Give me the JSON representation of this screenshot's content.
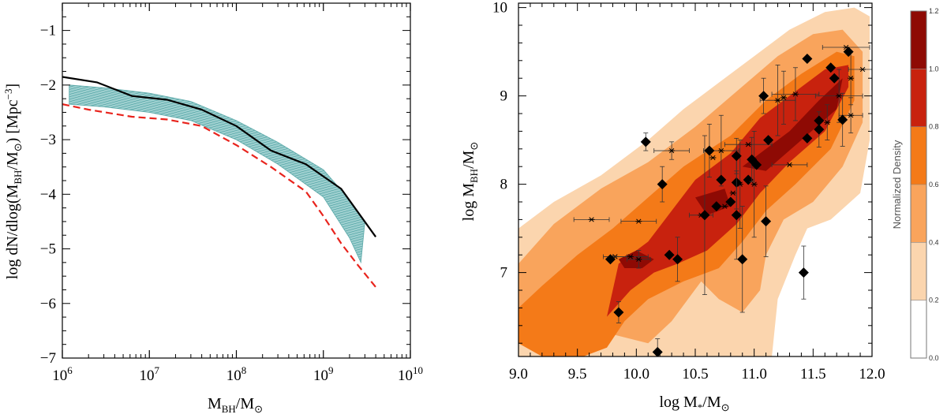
{
  "chart_data": [
    {
      "type": "line",
      "xscale": "log",
      "xlim": [
        1000000,
        10000000000
      ],
      "ylim": [
        -7,
        -0.5
      ],
      "x_ticks": [
        {
          "value": 1000000,
          "base": "10",
          "exp": "6"
        },
        {
          "value": 10000000,
          "base": "10",
          "exp": "7"
        },
        {
          "value": 100000000,
          "base": "10",
          "exp": "8"
        },
        {
          "value": 1000000000,
          "base": "10",
          "exp": "9"
        },
        {
          "value": 10000000000,
          "base": "10",
          "exp": "10"
        }
      ],
      "y_ticks": [
        -7,
        -6,
        -5,
        -4,
        -3,
        -2,
        -1
      ],
      "y_tick_labels": [
        "−7",
        "−6",
        "−5",
        "−4",
        "−3",
        "−2",
        "−1"
      ],
      "xlabel": {
        "main": "M",
        "sub1": "BH",
        "mid": "/M",
        "sub2": "⊙"
      },
      "ylabel": {
        "pre": "log dN/dlog(M",
        "sub1": "BH",
        "mid": "/M",
        "sub2": "⊙",
        "post": ") [Mpc",
        "sup": "−3",
        "end": "]"
      },
      "series": [
        {
          "style": "solid",
          "color": "#000000",
          "x": [
            1000000,
            2500000,
            6300000,
            16000000,
            40000000,
            100000000,
            250000000,
            630000000,
            1600000000,
            4000000000
          ],
          "y": [
            -1.85,
            -1.95,
            -2.2,
            -2.27,
            -2.45,
            -2.75,
            -3.2,
            -3.45,
            -3.9,
            -4.78
          ]
        },
        {
          "style": "dashed",
          "color": "#e8241d",
          "x": [
            1000000,
            2000000,
            6300000,
            16000000,
            40000000,
            100000000,
            250000000,
            630000000,
            1000000000,
            1600000000,
            2500000000,
            4000000000
          ],
          "y": [
            -2.35,
            -2.45,
            -2.58,
            -2.63,
            -2.75,
            -3.1,
            -3.5,
            -3.95,
            -4.4,
            -4.9,
            -5.3,
            -5.7
          ]
        },
        {
          "style": "band",
          "color": "#6fb8b8",
          "x_upper": [
            1200000,
            3000000,
            10000000,
            30000000,
            100000000,
            300000000,
            1000000000,
            2000000000,
            3000000000
          ],
          "y_upper": [
            -2.0,
            -2.05,
            -2.15,
            -2.3,
            -2.65,
            -3.05,
            -3.55,
            -4.1,
            -4.5
          ],
          "x_lower": [
            1200000,
            3000000,
            10000000,
            30000000,
            100000000,
            300000000,
            1000000000,
            2000000000,
            2700000000
          ],
          "y_lower": [
            -2.35,
            -2.4,
            -2.5,
            -2.65,
            -3.0,
            -3.45,
            -4.05,
            -4.8,
            -5.25
          ]
        }
      ]
    },
    {
      "type": "heatmap",
      "xlim": [
        9.0,
        12.0
      ],
      "ylim": [
        6.05,
        10.05
      ],
      "x_ticks": [
        9.0,
        9.5,
        10.0,
        10.5,
        11.0,
        11.5,
        12.0
      ],
      "x_tick_labels": [
        "9.0",
        "9.5",
        "10.0",
        "10.5",
        "11.0",
        "11.5",
        "12.0"
      ],
      "y_ticks": [
        7,
        8,
        9,
        10
      ],
      "y_tick_labels": [
        "7",
        "8",
        "9",
        "10"
      ],
      "xlabel": {
        "main": "log M",
        "sub1": "*",
        "mid": "/M",
        "sub2": "⊙"
      },
      "ylabel": {
        "main": "log M",
        "sub1": "BH",
        "mid": "/M",
        "sub2": "⊙"
      },
      "colorbar": {
        "title": "Normalized Density",
        "ticks": [
          "0.0",
          "0.2",
          "0.4",
          "0.6",
          "0.8",
          "1.0",
          "1.2"
        ],
        "colors": [
          "#ffffff",
          "#fbd5ae",
          "#f9a45c",
          "#f47a18",
          "#c8220e",
          "#8e0a04"
        ]
      },
      "contours": [
        {
          "level": "0.2-0.4",
          "color": "#fbd5ae",
          "points": [
            [
              9.0,
              6.05
            ],
            [
              9.0,
              7.5
            ],
            [
              9.3,
              7.8
            ],
            [
              9.7,
              8.1
            ],
            [
              10.1,
              8.5
            ],
            [
              10.4,
              8.85
            ],
            [
              10.7,
              9.15
            ],
            [
              11.0,
              9.45
            ],
            [
              11.3,
              9.75
            ],
            [
              11.6,
              9.95
            ],
            [
              11.85,
              10.0
            ],
            [
              11.98,
              9.9
            ],
            [
              11.98,
              8.5
            ],
            [
              11.9,
              7.9
            ],
            [
              11.65,
              7.6
            ],
            [
              11.45,
              7.5
            ],
            [
              11.35,
              7.2
            ],
            [
              11.2,
              6.7
            ],
            [
              11.15,
              6.05
            ]
          ]
        },
        {
          "level": "0.4-0.6",
          "color": "#f9a45c",
          "points": [
            [
              9.0,
              6.2
            ],
            [
              9.0,
              7.1
            ],
            [
              9.3,
              7.55
            ],
            [
              9.7,
              7.95
            ],
            [
              10.1,
              8.25
            ],
            [
              10.5,
              8.65
            ],
            [
              10.85,
              9.05
            ],
            [
              11.2,
              9.45
            ],
            [
              11.5,
              9.7
            ],
            [
              11.75,
              9.75
            ],
            [
              11.92,
              9.5
            ],
            [
              11.92,
              8.7
            ],
            [
              11.75,
              8.2
            ],
            [
              11.5,
              7.8
            ],
            [
              11.25,
              7.6
            ],
            [
              11.1,
              7.2
            ],
            [
              11.05,
              6.8
            ],
            [
              10.9,
              6.55
            ],
            [
              10.7,
              6.7
            ],
            [
              10.55,
              6.9
            ],
            [
              10.3,
              6.45
            ],
            [
              10.1,
              6.2
            ],
            [
              9.8,
              6.3
            ],
            [
              9.6,
              6.6
            ],
            [
              9.45,
              6.05
            ],
            [
              9.3,
              6.05
            ]
          ]
        },
        {
          "level": "0.6-0.8",
          "color": "#f47a18",
          "points": [
            [
              9.0,
              6.6
            ],
            [
              9.2,
              6.85
            ],
            [
              9.5,
              7.2
            ],
            [
              9.8,
              7.5
            ],
            [
              10.1,
              7.85
            ],
            [
              10.4,
              8.2
            ],
            [
              10.8,
              8.55
            ],
            [
              11.1,
              8.95
            ],
            [
              11.4,
              9.25
            ],
            [
              11.7,
              9.5
            ],
            [
              11.85,
              9.45
            ],
            [
              11.85,
              8.95
            ],
            [
              11.65,
              8.4
            ],
            [
              11.35,
              8.0
            ],
            [
              11.1,
              7.7
            ],
            [
              10.9,
              7.35
            ],
            [
              10.7,
              7.05
            ],
            [
              10.4,
              6.9
            ],
            [
              10.1,
              6.7
            ],
            [
              9.9,
              6.45
            ],
            [
              9.75,
              6.15
            ],
            [
              9.55,
              6.05
            ],
            [
              9.2,
              6.05
            ],
            [
              9.0,
              6.2
            ]
          ]
        },
        {
          "level": "0.8-1.0",
          "color": "#c8220e",
          "points": [
            [
              9.75,
              6.5
            ],
            [
              9.85,
              7.1
            ],
            [
              10.1,
              7.35
            ],
            [
              10.3,
              7.7
            ],
            [
              10.5,
              8.05
            ],
            [
              10.8,
              8.35
            ],
            [
              11.05,
              8.75
            ],
            [
              11.35,
              9.05
            ],
            [
              11.6,
              9.3
            ],
            [
              11.8,
              9.35
            ],
            [
              11.8,
              9.1
            ],
            [
              11.6,
              8.6
            ],
            [
              11.3,
              8.25
            ],
            [
              11.05,
              7.9
            ],
            [
              10.85,
              7.55
            ],
            [
              10.6,
              7.25
            ],
            [
              10.35,
              7.1
            ],
            [
              10.15,
              7.0
            ],
            [
              9.95,
              6.8
            ]
          ]
        },
        {
          "level": "1.0-1.2",
          "color": "#8e0a04",
          "points": [
            [
              9.85,
              7.15
            ],
            [
              10.0,
              7.25
            ],
            [
              10.15,
              7.15
            ],
            [
              10.05,
              7.05
            ],
            [
              9.9,
              7.05
            ]
          ]
        },
        {
          "level": "1.0-1.2",
          "color": "#8e0a04",
          "points": [
            [
              10.5,
              7.85
            ],
            [
              10.75,
              7.95
            ],
            [
              10.8,
              7.75
            ],
            [
              10.6,
              7.65
            ]
          ]
        },
        {
          "level": "1.0-1.2",
          "color": "#8e0a04",
          "points": [
            [
              10.9,
              8.2
            ],
            [
              11.3,
              8.6
            ],
            [
              11.55,
              8.95
            ],
            [
              11.75,
              9.2
            ],
            [
              11.7,
              8.85
            ],
            [
              11.4,
              8.5
            ],
            [
              11.1,
              8.15
            ]
          ]
        }
      ],
      "diamonds": [
        {
          "x": 9.78,
          "y": 7.15
        },
        {
          "x": 9.85,
          "y": 6.55,
          "yerr": 0.12
        },
        {
          "x": 10.08,
          "y": 8.48,
          "yerr": 0.1
        },
        {
          "x": 10.18,
          "y": 6.1,
          "yerr": 0.15
        },
        {
          "x": 10.22,
          "y": 8.0,
          "yerr": 0.2
        },
        {
          "x": 10.28,
          "y": 7.2
        },
        {
          "x": 10.35,
          "y": 7.15,
          "yerr": 0.25
        },
        {
          "x": 10.58,
          "y": 7.65,
          "yerr": 0.9
        },
        {
          "x": 10.62,
          "y": 8.38,
          "yerr": 0.3
        },
        {
          "x": 10.68,
          "y": 7.75
        },
        {
          "x": 10.72,
          "y": 8.05
        },
        {
          "x": 10.8,
          "y": 7.8
        },
        {
          "x": 10.85,
          "y": 8.02,
          "yerr": 0.3
        },
        {
          "x": 10.85,
          "y": 7.65,
          "yerr": 0.5
        },
        {
          "x": 10.85,
          "y": 8.32,
          "yerr": 0.2
        },
        {
          "x": 10.9,
          "y": 7.15,
          "yerr": 0.6
        },
        {
          "x": 10.95,
          "y": 8.05
        },
        {
          "x": 10.98,
          "y": 8.28,
          "yerr": 0.25
        },
        {
          "x": 11.02,
          "y": 8.22
        },
        {
          "x": 11.08,
          "y": 9.0,
          "yerr": 0.2
        },
        {
          "x": 11.1,
          "y": 7.58,
          "yerr": 0.4
        },
        {
          "x": 11.12,
          "y": 8.5
        },
        {
          "x": 11.42,
          "y": 7.0,
          "yerr": 0.3
        },
        {
          "x": 11.45,
          "y": 9.42
        },
        {
          "x": 11.45,
          "y": 8.52
        },
        {
          "x": 11.55,
          "y": 8.62,
          "yerr": 0.2
        },
        {
          "x": 11.55,
          "y": 8.72
        },
        {
          "x": 11.65,
          "y": 9.32
        },
        {
          "x": 11.68,
          "y": 9.2
        },
        {
          "x": 11.75,
          "y": 8.73,
          "yerr": 0.3
        },
        {
          "x": 11.8,
          "y": 9.5
        }
      ],
      "stars": [
        {
          "x": 9.62,
          "y": 7.6,
          "xerr": 0.15
        },
        {
          "x": 9.82,
          "y": 7.18,
          "xerr": 0.1
        },
        {
          "x": 9.95,
          "y": 7.18,
          "xerr": 0.15
        },
        {
          "x": 10.02,
          "y": 7.58,
          "xerr": 0.15
        },
        {
          "x": 10.02,
          "y": 7.15,
          "xerr": 0.1,
          "yerr": 0.1
        },
        {
          "x": 10.3,
          "y": 8.38,
          "xerr": 0.15,
          "yerr": 0.1
        },
        {
          "x": 10.55,
          "y": 7.65,
          "xerr": 0.1
        },
        {
          "x": 10.65,
          "y": 8.3
        },
        {
          "x": 10.72,
          "y": 8.38,
          "xerr": 0.15,
          "yerr": 0.4
        },
        {
          "x": 10.75,
          "y": 7.75
        },
        {
          "x": 10.82,
          "y": 7.9
        },
        {
          "x": 10.88,
          "y": 8.0,
          "yerr": 0.5
        },
        {
          "x": 10.95,
          "y": 8.45,
          "xerr": 0.2
        },
        {
          "x": 11.0,
          "y": 8.0,
          "yerr": 0.6
        },
        {
          "x": 11.2,
          "y": 8.95,
          "xerr": 0.15,
          "yerr": 0.4
        },
        {
          "x": 11.25,
          "y": 8.98,
          "yerr": 0.3
        },
        {
          "x": 11.3,
          "y": 8.22,
          "xerr": 0.15
        },
        {
          "x": 11.35,
          "y": 9.02,
          "xerr": 0.2,
          "yerr": 0.3
        },
        {
          "x": 11.62,
          "y": 8.7,
          "yerr": 0.2
        },
        {
          "x": 11.72,
          "y": 9.0,
          "xerr": 0.2,
          "yerr": 0.3
        },
        {
          "x": 11.78,
          "y": 9.55,
          "xerr": 0.2
        },
        {
          "x": 11.82,
          "y": 9.2,
          "yerr": 0.3
        },
        {
          "x": 11.82,
          "y": 8.78,
          "xerr": 0.1,
          "yerr": 0.2
        },
        {
          "x": 11.92,
          "y": 9.3,
          "xerr": 0.12
        }
      ]
    }
  ]
}
